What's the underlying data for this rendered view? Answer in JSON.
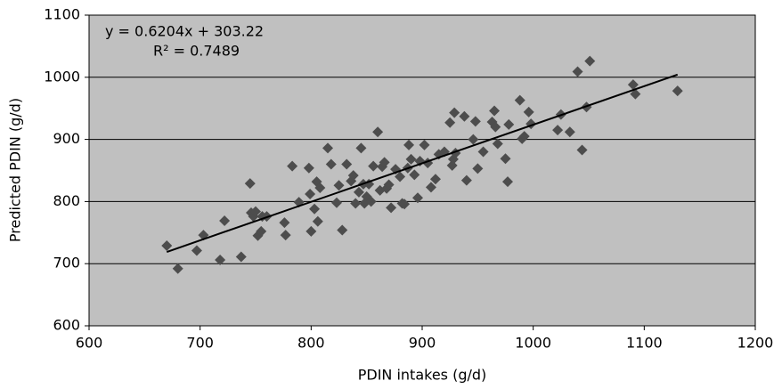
{
  "chart_data": {
    "type": "scatter",
    "x_label": "PDIN intakes (g/d)",
    "y_label": "Predicted PDIN (g/d)",
    "trendline": {
      "equation": "y = 0.6204x + 303.22",
      "r2": "R² = 0.7489",
      "slope": 0.6204,
      "intercept": 303.22,
      "color": "#000000"
    },
    "color": "#4d4d4d",
    "background": "#c0c0c0",
    "grid": true,
    "xlim": [
      600,
      1200
    ],
    "xticks": [
      600,
      700,
      800,
      900,
      1000,
      1100,
      1200
    ],
    "ylim": [
      600,
      1100
    ],
    "yticks": [
      600,
      700,
      800,
      900,
      1000,
      1100
    ],
    "x": [
      670,
      680,
      697,
      703,
      718,
      722,
      737,
      745,
      746,
      748,
      750,
      752,
      755,
      756,
      760,
      776,
      777,
      783,
      789,
      798,
      799,
      800,
      803,
      805,
      806,
      808,
      815,
      818,
      823,
      825,
      828,
      832,
      836,
      838,
      840,
      843,
      845,
      847,
      848,
      850,
      852,
      854,
      856,
      860,
      862,
      864,
      866,
      868,
      870,
      872,
      876,
      880,
      882,
      884,
      887,
      888,
      890,
      893,
      896,
      898,
      902,
      905,
      908,
      912,
      915,
      920,
      925,
      927,
      928,
      929,
      930,
      938,
      940,
      946,
      948,
      950,
      955,
      963,
      965,
      966,
      968,
      975,
      977,
      978,
      988,
      990,
      992,
      996,
      998,
      1022,
      1025,
      1033,
      1040,
      1044,
      1048,
      1051,
      1090,
      1092,
      1130
    ],
    "values": [
      729,
      692,
      721,
      746,
      706,
      769,
      711,
      829,
      782,
      776,
      784,
      745,
      752,
      776,
      776,
      766,
      746,
      857,
      799,
      854,
      812,
      752,
      788,
      832,
      768,
      822,
      886,
      860,
      798,
      826,
      754,
      860,
      833,
      842,
      797,
      815,
      886,
      828,
      797,
      808,
      828,
      800,
      857,
      912,
      818,
      856,
      863,
      821,
      827,
      790,
      852,
      840,
      797,
      796,
      854,
      891,
      868,
      843,
      806,
      865,
      891,
      862,
      823,
      836,
      876,
      880,
      927,
      858,
      868,
      943,
      878,
      937,
      834,
      900,
      929,
      853,
      880,
      928,
      946,
      920,
      893,
      869,
      832,
      924,
      963,
      901,
      905,
      944,
      925,
      915,
      940,
      912,
      1009,
      883,
      952,
      1026,
      988,
      973,
      978
    ]
  }
}
